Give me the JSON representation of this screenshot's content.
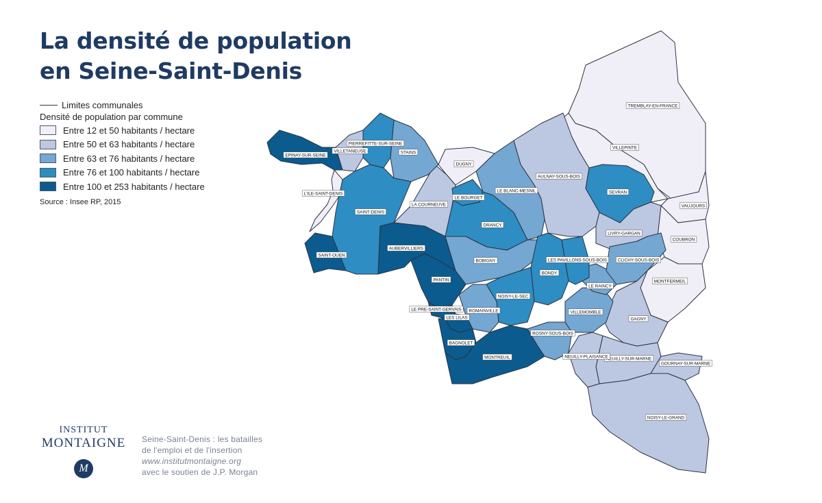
{
  "title": {
    "line1": "La densité de population",
    "line2": "en Seine-Saint-Denis"
  },
  "legend": {
    "limits": "Limites communales",
    "subtitle": "Densité de population par commune",
    "classes": [
      {
        "label": "Entre 12 et 50 habitants / hectare",
        "color": "#f0eff7"
      },
      {
        "label": "Entre 50 et 63 habitants / hectare",
        "color": "#bcc8e2"
      },
      {
        "label": "Entre 63 et 76 habitants / hectare",
        "color": "#74a7d2"
      },
      {
        "label": "Entre 76 et 100 habitants / hectare",
        "color": "#2e8dc2"
      },
      {
        "label": "Entre 100 et 253 habitants / hectare",
        "color": "#0b5b8f"
      }
    ],
    "source": "Source : Insee RP, 2015"
  },
  "communes": [
    {
      "name": "TREMBLAY-EN-FRANCE",
      "class": 0
    },
    {
      "name": "VILLEPINTE",
      "class": 0
    },
    {
      "name": "VAUJOURS",
      "class": 0
    },
    {
      "name": "COUBRON",
      "class": 0
    },
    {
      "name": "MONTFERMEIL",
      "class": 0
    },
    {
      "name": "DUGNY",
      "class": 0
    },
    {
      "name": "L'ILE-SAINT-DENIS",
      "class": 0
    },
    {
      "name": "AULNAY-SOUS-BOIS",
      "class": 1
    },
    {
      "name": "LIVRY-GARGAN",
      "class": 1
    },
    {
      "name": "GAGNY",
      "class": 1
    },
    {
      "name": "NEUILLY-SUR-MARNE",
      "class": 1
    },
    {
      "name": "NEUILLY-PLAISANCE",
      "class": 1
    },
    {
      "name": "GOURNAY-SUR-MARNE",
      "class": 1
    },
    {
      "name": "NOISY-LE-GRAND",
      "class": 1
    },
    {
      "name": "LA COURNEUVE",
      "class": 1
    },
    {
      "name": "VILLETANEUSE",
      "class": 1
    },
    {
      "name": "STAINS",
      "class": 2
    },
    {
      "name": "LE BLANC-MESNIL",
      "class": 2
    },
    {
      "name": "BOBIGNY",
      "class": 2
    },
    {
      "name": "ROMAINVILLE",
      "class": 2
    },
    {
      "name": "ROSNY-SOUS-BOIS",
      "class": 2
    },
    {
      "name": "VILLEMOMBLE",
      "class": 2
    },
    {
      "name": "LE RAINCY",
      "class": 2
    },
    {
      "name": "CLICHY-SOUS-BOIS",
      "class": 2
    },
    {
      "name": "PIERREFITTE-SUR-SEINE",
      "class": 3
    },
    {
      "name": "SAINT-DENIS",
      "class": 3
    },
    {
      "name": "LE BOURGET",
      "class": 3
    },
    {
      "name": "DRANCY",
      "class": 3
    },
    {
      "name": "BONDY",
      "class": 3
    },
    {
      "name": "LES PAVILLONS-SOUS-BOIS",
      "class": 3
    },
    {
      "name": "NOISY-LE-SEC",
      "class": 3
    },
    {
      "name": "SEVRAN",
      "class": 3
    },
    {
      "name": "EPINAY-SUR-SEINE",
      "class": 4
    },
    {
      "name": "SAINT-OUEN",
      "class": 4
    },
    {
      "name": "AUBERVILLIERS",
      "class": 4
    },
    {
      "name": "PANTIN",
      "class": 4
    },
    {
      "name": "LE PRE-SAINT-GERVAIS",
      "class": 4
    },
    {
      "name": "LES LILAS",
      "class": 4
    },
    {
      "name": "BAGNOLET",
      "class": 4
    },
    {
      "name": "MONTREUIL",
      "class": 4
    }
  ],
  "logo": {
    "line1": "INSTITUT",
    "line2": "MONTAIGNE",
    "emblem": "M"
  },
  "credits": {
    "line1": "Seine-Saint-Denis : les batailles",
    "line2": "de l'emploi et de l'insertion",
    "line3": "www.institutmontaigne.org",
    "line4": "avec le soutien de J.P. Morgan"
  }
}
